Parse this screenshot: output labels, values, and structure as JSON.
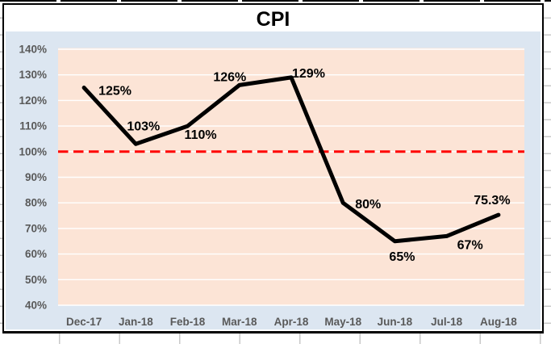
{
  "sheet": {
    "bg": "#ffffff",
    "grid_color": "#c9c9c9",
    "cell_border_color": "#000000"
  },
  "chart": {
    "bg": "#ffffff",
    "border_color": "#000000",
    "panel_bg": "#dce6f1",
    "plot_bg": "#fce4d6",
    "grid_color": "#ffffff",
    "axis_text_color": "#595959",
    "label_text_color": "#000000",
    "series_color": "#000000"
  },
  "chart_data": {
    "type": "line",
    "title": "CPI",
    "categories": [
      "Dec-17",
      "Jan-18",
      "Feb-18",
      "Mar-18",
      "Apr-18",
      "May-18",
      "Jun-18",
      "Jul-18",
      "Aug-18"
    ],
    "series": [
      {
        "name": "CPI",
        "values": [
          125,
          103,
          110,
          126,
          129,
          80,
          65,
          67,
          75.3
        ]
      }
    ],
    "data_labels": [
      "125%",
      "103%",
      "110%",
      "126%",
      "129%",
      "80%",
      "65%",
      "67%",
      "75.3%"
    ],
    "y_ticks": [
      {
        "value": 140,
        "label": "140%"
      },
      {
        "value": 130,
        "label": "130%"
      },
      {
        "value": 120,
        "label": "120%"
      },
      {
        "value": 110,
        "label": "110%"
      },
      {
        "value": 100,
        "label": "100%"
      },
      {
        "value": 90,
        "label": "90%"
      },
      {
        "value": 80,
        "label": "80%"
      },
      {
        "value": 70,
        "label": "70%"
      },
      {
        "value": 60,
        "label": "60%"
      },
      {
        "value": 50,
        "label": "50%"
      },
      {
        "value": 40,
        "label": "40%"
      }
    ],
    "ylim": [
      40,
      140
    ],
    "ref_line": {
      "value": 100,
      "style": "dashed",
      "color": "#ff0000"
    },
    "grid": "horizontal",
    "legend": "none"
  }
}
